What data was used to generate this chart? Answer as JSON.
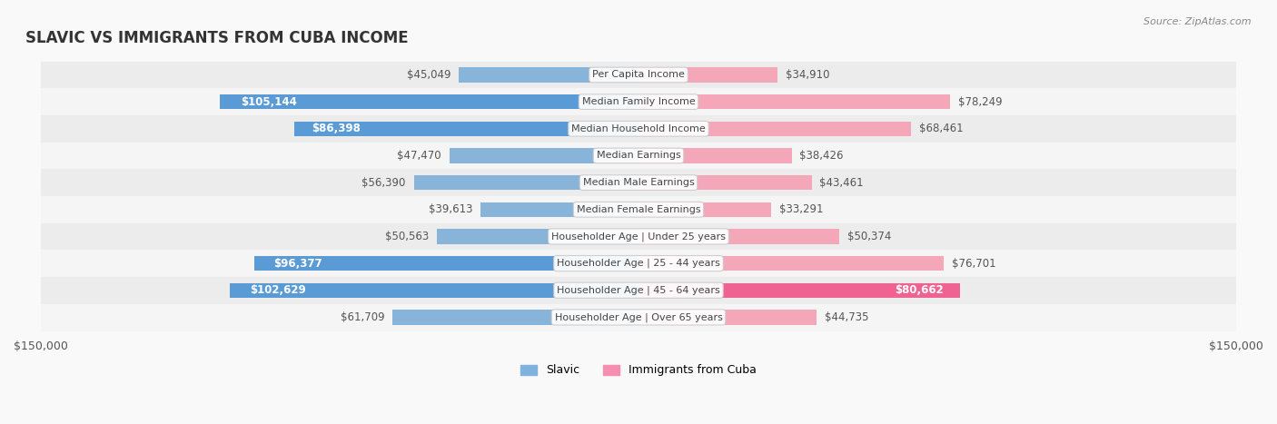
{
  "title": "SLAVIC VS IMMIGRANTS FROM CUBA INCOME",
  "source": "Source: ZipAtlas.com",
  "categories": [
    "Per Capita Income",
    "Median Family Income",
    "Median Household Income",
    "Median Earnings",
    "Median Male Earnings",
    "Median Female Earnings",
    "Householder Age | Under 25 years",
    "Householder Age | 25 - 44 years",
    "Householder Age | 45 - 64 years",
    "Householder Age | Over 65 years"
  ],
  "slavic_values": [
    45049,
    105144,
    86398,
    47470,
    56390,
    39613,
    50563,
    96377,
    102629,
    61709
  ],
  "cuba_values": [
    34910,
    78249,
    68461,
    38426,
    43461,
    33291,
    50374,
    76701,
    80662,
    44735
  ],
  "slavic_labels": [
    "$45,049",
    "$105,144",
    "$86,398",
    "$47,470",
    "$56,390",
    "$39,613",
    "$50,563",
    "$96,377",
    "$102,629",
    "$61,709"
  ],
  "cuba_labels": [
    "$34,910",
    "$78,249",
    "$68,461",
    "$38,426",
    "$43,461",
    "$33,291",
    "$50,374",
    "$76,701",
    "$80,662",
    "$44,735"
  ],
  "max_value": 150000,
  "slavic_color": "#89b4d9",
  "slavic_color_dark": "#5b9bd5",
  "cuba_color": "#f4a7b9",
  "cuba_color_dark": "#f06292",
  "slavic_legend_color": "#7eb3e0",
  "cuba_legend_color": "#f48fb1",
  "bg_color": "#f5f5f5",
  "row_bg": "#f0f0f0",
  "bar_height": 0.55,
  "label_threshold": 80000
}
